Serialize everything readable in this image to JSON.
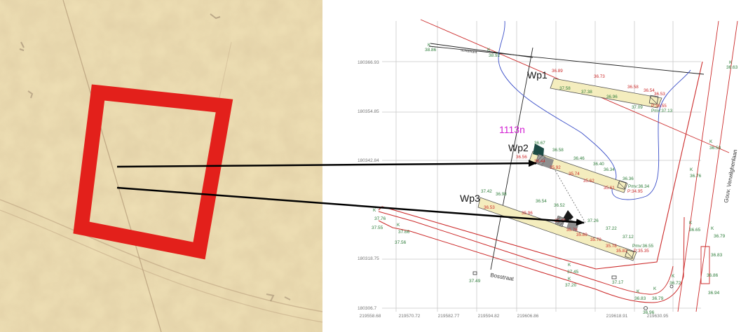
{
  "colors": {
    "survey_red": "#cc2a2a",
    "survey_green": "#2e7d3a",
    "survey_blue": "#3a4ec8",
    "parcel_magenta": "#d21fd2",
    "trench_fill": "#f4edbe",
    "highlight_red": "#e3201b",
    "old_map_paper": "#efe0b5"
  },
  "old_map": {
    "highlight_shape": "square outline",
    "arrow_count": 2
  },
  "survey": {
    "parcel_label": "1113n",
    "trenches": [
      {
        "label": "Wp1"
      },
      {
        "label": "Wp2"
      },
      {
        "label": "Wp3"
      }
    ],
    "street_label": "Bosstraat",
    "side_road_label": "Gouv. Verwilghenlaan",
    "small_road_label": "achterkant",
    "y_axis_labels": [
      "180366.93",
      "180354.85",
      "180342.84",
      "180318.75",
      "180306.7"
    ],
    "x_axis_labels": [
      "219558.68",
      "219570.72",
      "219582.77",
      "219594.82",
      "219606.86",
      "219618.91",
      "219630.95"
    ],
    "k_marker": "K",
    "green_heights": {
      "top_left": "38.86",
      "top_mid": "38.92",
      "top_right": "36.63",
      "right_1": "36.50",
      "right_2": "36.76",
      "right_3": "36.65",
      "right_4": "36.79",
      "right_5": "36.83",
      "right_6": "36.86",
      "right_7": "36.94",
      "left_1": "37.76",
      "left_2": "37.55",
      "left_3": "37.66",
      "left_4": "37.56",
      "bottom_1": "37.45",
      "bottom_2": "37.49",
      "bottom_3": "37.20",
      "bottom_4": "37.17",
      "bottom_5": "36.83",
      "bottom_6": "36.79",
      "bottom_7": "36.72",
      "bottom_8": "36.96"
    },
    "wp1_green": [
      "37.58",
      "37.38",
      "36.96",
      "37.09"
    ],
    "wp1_red": [
      "36.89",
      "36.73",
      "36.58",
      "36.54",
      "36.53",
      "P:36.55"
    ],
    "wp1_pmv": "Pmv:37.13",
    "wp2_green": [
      "36.67",
      "36.58",
      "36.46",
      "36.40",
      "36.34",
      "36.36"
    ],
    "wp2_red": [
      "36.56",
      "36.44",
      "35.92",
      "35.74",
      "35.62",
      "35.61",
      "P:34.95"
    ],
    "wp2_pmv": "Pmv:36.34",
    "wp3_green": [
      "37.42",
      "36.98",
      "36.54",
      "36.52",
      "37.26",
      "37.22",
      "37.12"
    ],
    "wp3_red": [
      "36.53",
      "35.96",
      "35.49",
      "35.76",
      "35.89",
      "35.78",
      "35.78",
      "35.81",
      "P:35.35"
    ],
    "wp3_pmv": "Pmv:36.55"
  }
}
